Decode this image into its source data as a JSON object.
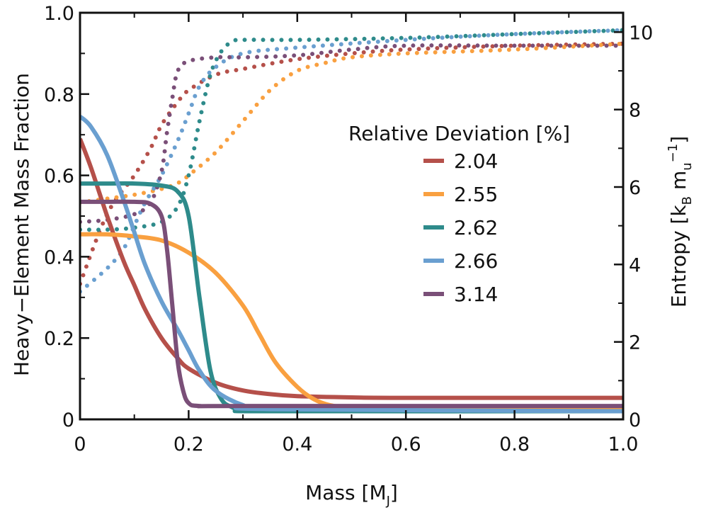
{
  "chart_data": {
    "type": "line",
    "xlabel": "Mass [M",
    "xlabel_sub": "J",
    "xlabel_close": "]",
    "ylabel_left": "Heavy−Element Mass Fraction",
    "ylabel_right_parts": [
      "Entropy [k",
      "B",
      " m",
      "u",
      "−1",
      "]"
    ],
    "xlim": [
      0,
      1.0
    ],
    "ylim_left": [
      0,
      1.0
    ],
    "ylim_right": [
      0,
      10.5
    ],
    "x_ticks": [
      "0",
      "0.2",
      "0.4",
      "0.6",
      "0.8",
      "1.0"
    ],
    "y_left_ticks": [
      "0",
      "0.2",
      "0.4",
      "0.6",
      "0.8",
      "1.0"
    ],
    "y_right_ticks": [
      "0",
      "2",
      "4",
      "6",
      "8",
      "10"
    ],
    "legend_title": "Relative Deviation [%]",
    "legend_position": "center-right",
    "series": [
      {
        "name": "2.04",
        "color": "#b5504a",
        "z_x": [
          0,
          0.02,
          0.05,
          0.08,
          0.1,
          0.12,
          0.15,
          0.18,
          0.2,
          0.25,
          0.3,
          0.35,
          0.4,
          0.5,
          0.6,
          1.0
        ],
        "z_y": [
          0.69,
          0.62,
          0.5,
          0.39,
          0.33,
          0.27,
          0.2,
          0.15,
          0.125,
          0.09,
          0.071,
          0.062,
          0.057,
          0.054,
          0.053,
          0.053
        ],
        "s_x": [
          0,
          0.05,
          0.1,
          0.13,
          0.15,
          0.18,
          0.2,
          0.25,
          0.3,
          0.4,
          0.5,
          0.6,
          0.8,
          1.0
        ],
        "s_y": [
          3.5,
          5.3,
          6.3,
          7.0,
          7.6,
          8.2,
          8.5,
          8.9,
          9.05,
          9.3,
          9.45,
          9.55,
          9.65,
          9.7
        ]
      },
      {
        "name": "2.55",
        "color": "#f9a040",
        "z_x": [
          0,
          0.05,
          0.1,
          0.15,
          0.2,
          0.25,
          0.3,
          0.33,
          0.36,
          0.4,
          0.43,
          0.46,
          0.5,
          0.6,
          1.0
        ],
        "z_y": [
          0.455,
          0.455,
          0.45,
          0.44,
          0.41,
          0.36,
          0.28,
          0.21,
          0.14,
          0.08,
          0.05,
          0.035,
          0.03,
          0.03,
          0.03
        ],
        "s_x": [
          0,
          0.05,
          0.1,
          0.15,
          0.18,
          0.2,
          0.25,
          0.3,
          0.35,
          0.4,
          0.45,
          0.5,
          0.6,
          0.8,
          1.0
        ],
        "s_y": [
          5.6,
          5.7,
          5.8,
          5.95,
          6.1,
          6.3,
          6.9,
          7.7,
          8.5,
          9.0,
          9.2,
          9.35,
          9.45,
          9.55,
          9.7
        ]
      },
      {
        "name": "2.62",
        "color": "#2e8b8b",
        "z_x": [
          0,
          0.05,
          0.1,
          0.15,
          0.18,
          0.2,
          0.22,
          0.24,
          0.26,
          0.28,
          0.3,
          0.35,
          1.0
        ],
        "z_y": [
          0.58,
          0.58,
          0.58,
          0.575,
          0.56,
          0.5,
          0.3,
          0.12,
          0.05,
          0.03,
          0.022,
          0.02,
          0.02
        ],
        "s_x": [
          0,
          0.05,
          0.1,
          0.15,
          0.18,
          0.2,
          0.22,
          0.24,
          0.26,
          0.28,
          0.3,
          0.4,
          0.6,
          0.8,
          1.0
        ],
        "s_y": [
          4.9,
          4.9,
          4.95,
          5.1,
          5.5,
          6.3,
          7.7,
          8.9,
          9.5,
          9.75,
          9.8,
          9.8,
          9.85,
          9.95,
          10.05
        ]
      },
      {
        "name": "2.66",
        "color": "#6a9fd0",
        "z_x": [
          0,
          0.02,
          0.05,
          0.08,
          0.1,
          0.12,
          0.15,
          0.18,
          0.2,
          0.22,
          0.25,
          0.3,
          0.35,
          1.0
        ],
        "z_y": [
          0.745,
          0.72,
          0.65,
          0.54,
          0.46,
          0.38,
          0.29,
          0.22,
          0.17,
          0.12,
          0.07,
          0.035,
          0.025,
          0.02
        ],
        "s_x": [
          0,
          0.05,
          0.08,
          0.1,
          0.12,
          0.15,
          0.18,
          0.2,
          0.22,
          0.25,
          0.3,
          0.4,
          0.6,
          0.8,
          1.0
        ],
        "s_y": [
          3.3,
          3.9,
          4.4,
          5.0,
          5.6,
          6.3,
          7.2,
          7.9,
          8.6,
          9.1,
          9.45,
          9.6,
          9.8,
          9.95,
          10.05
        ]
      },
      {
        "name": "3.14",
        "color": "#7a4f78",
        "z_x": [
          0,
          0.05,
          0.1,
          0.13,
          0.15,
          0.16,
          0.17,
          0.18,
          0.19,
          0.2,
          0.22,
          0.3,
          1.0
        ],
        "z_y": [
          0.535,
          0.535,
          0.535,
          0.53,
          0.5,
          0.42,
          0.28,
          0.14,
          0.07,
          0.04,
          0.033,
          0.033,
          0.033
        ],
        "s_x": [
          0,
          0.05,
          0.1,
          0.13,
          0.15,
          0.16,
          0.17,
          0.18,
          0.2,
          0.25,
          0.3,
          0.4,
          0.5,
          0.6,
          0.8,
          1.0
        ],
        "s_y": [
          5.1,
          5.15,
          5.3,
          5.6,
          6.4,
          7.4,
          8.3,
          9.0,
          9.25,
          9.35,
          9.35,
          9.4,
          9.55,
          9.65,
          9.65,
          9.65
        ]
      }
    ]
  }
}
